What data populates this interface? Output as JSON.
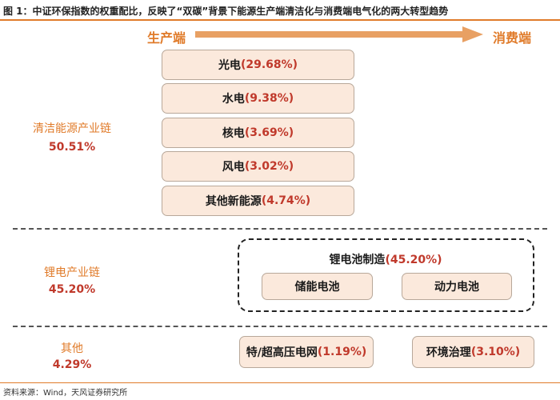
{
  "title": "图 1：中证环保指数的权重配比，反映了“双碳”背景下能源生产端清洁化与消费端电气化的两大转型趋势",
  "header": {
    "producer_end": "生产端",
    "consumer_end": "消费端"
  },
  "clean_energy": {
    "name": "清洁能源产业链",
    "value": "50.51%",
    "items": [
      {
        "label": "光电",
        "pct": "(29.68%)"
      },
      {
        "label": "水电",
        "pct": "(9.38%)"
      },
      {
        "label": "核电",
        "pct": "(3.69%)"
      },
      {
        "label": "风电",
        "pct": "(3.02%)"
      },
      {
        "label": "其他新能源",
        "pct": "(4.74%)"
      }
    ]
  },
  "lithium": {
    "name": "锂电产业链",
    "value": "45.20%",
    "group_label": "锂电池制造",
    "group_pct": "(45.20%)",
    "items": [
      {
        "label": "储能电池"
      },
      {
        "label": "动力电池"
      }
    ]
  },
  "other": {
    "name": "其他",
    "value": "4.29%",
    "items": [
      {
        "label": "特/超高压电网",
        "pct": "(1.19%)"
      },
      {
        "label": "环境治理",
        "pct": "(3.10%)"
      }
    ]
  },
  "source": "资料来源：Wind，天风证券研究所",
  "colors": {
    "accent": "#e07b2a",
    "highlight": "#c0392b",
    "box_fill": "#fbe9dc"
  }
}
